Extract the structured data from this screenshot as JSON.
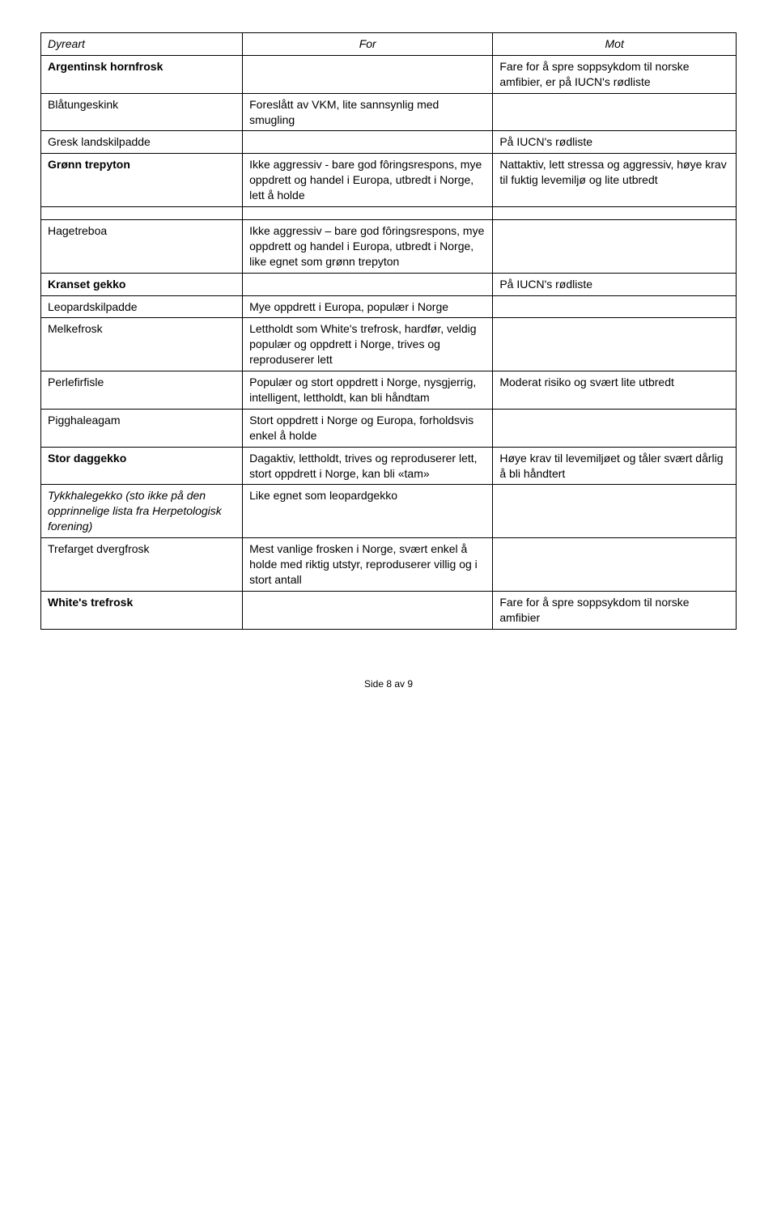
{
  "headers": {
    "col1": "Dyreart",
    "col2": "For",
    "col3": "Mot"
  },
  "section1": [
    {
      "c1": "Argentinsk hornfrosk",
      "c1_bold": true,
      "c2": "",
      "c3": "Fare for å spre soppsykdom til norske amfibier, er på IUCN's rødliste"
    },
    {
      "c1": "Blåtungeskink",
      "c1_bold": false,
      "c2": "Foreslått av VKM, lite sannsynlig med smugling",
      "c3": ""
    },
    {
      "c1": "Gresk landskilpadde",
      "c1_bold": false,
      "c2": "",
      "c3": "På IUCN's rødliste"
    },
    {
      "c1": "Grønn trepyton",
      "c1_bold": true,
      "c2": "Ikke aggressiv - bare god fôringsrespons, mye oppdrett og handel i Europa, utbredt i Norge, lett å holde",
      "c3": "Nattaktiv, lett stressa og aggressiv, høye krav til fuktig levemiljø og lite utbredt"
    }
  ],
  "section2": [
    {
      "c1": "Hagetreboa",
      "c1_bold": false,
      "c2": "Ikke aggressiv – bare god fôringsrespons, mye oppdrett og handel i Europa, utbredt i Norge, like egnet som grønn trepyton",
      "c3": ""
    },
    {
      "c1": "Kranset gekko",
      "c1_bold": true,
      "c2": "",
      "c3": "På IUCN's rødliste"
    },
    {
      "c1": "Leopardskilpadde",
      "c1_bold": false,
      "c2": "Mye oppdrett i Europa, populær i Norge",
      "c3": ""
    },
    {
      "c1": "Melkefrosk",
      "c1_bold": false,
      "c2": "Lettholdt som White's trefrosk, hardfør, veldig populær og oppdrett i Norge, trives og reproduserer lett",
      "c3": ""
    },
    {
      "c1": "Perlefirfisle",
      "c1_bold": false,
      "c2": "Populær og stort oppdrett i Norge, nysgjerrig, intelligent, lettholdt, kan bli håndtam",
      "c3": "Moderat risiko og svært lite utbredt"
    },
    {
      "c1": "Pigghaleagam",
      "c1_bold": false,
      "c2": "Stort oppdrett i Norge og Europa, forholdsvis enkel å holde",
      "c3": ""
    },
    {
      "c1": "Stor daggekko",
      "c1_bold": true,
      "c2": "Dagaktiv, lettholdt, trives og reproduserer lett, stort oppdrett i Norge, kan bli «tam»",
      "c3": "Høye krav til levemiljøet og tåler svært dårlig å bli håndtert"
    },
    {
      "c1": "Tykkhalegekko (sto ikke på den opprinnelige lista fra Herpetologisk forening)",
      "c1_italic": true,
      "c2": "Like egnet som leopardgekko",
      "c3": ""
    },
    {
      "c1": "Trefarget dvergfrosk",
      "c1_bold": false,
      "c2": "Mest vanlige frosken i Norge, svært enkel å holde med riktig utstyr, reproduserer villig og i stort antall",
      "c3": ""
    },
    {
      "c1": "White's trefrosk",
      "c1_bold": true,
      "c2": "",
      "c3": "Fare for å spre soppsykdom til norske amfibier"
    }
  ],
  "footer": "Side 8 av 9"
}
